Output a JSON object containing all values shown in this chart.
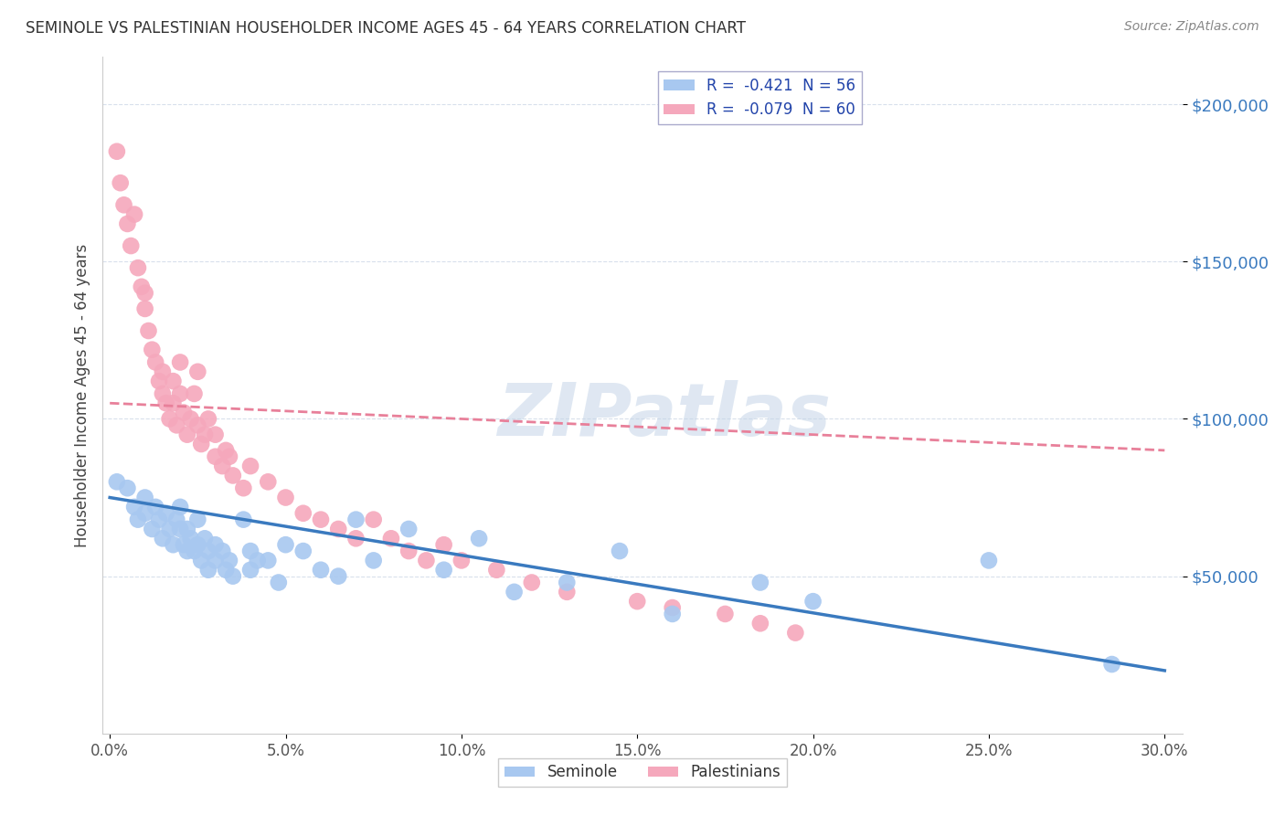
{
  "title": "SEMINOLE VS PALESTINIAN HOUSEHOLDER INCOME AGES 45 - 64 YEARS CORRELATION CHART",
  "source": "Source: ZipAtlas.com",
  "ylabel": "Householder Income Ages 45 - 64 years",
  "xlabel_ticks": [
    "0.0%",
    "5.0%",
    "10.0%",
    "15.0%",
    "20.0%",
    "25.0%",
    "30.0%"
  ],
  "xlabel_vals": [
    0.0,
    0.05,
    0.1,
    0.15,
    0.2,
    0.25,
    0.3
  ],
  "ytick_labels": [
    "$50,000",
    "$100,000",
    "$150,000",
    "$200,000"
  ],
  "ytick_vals": [
    50000,
    100000,
    150000,
    200000
  ],
  "ylim": [
    0,
    215000
  ],
  "xlim": [
    -0.002,
    0.305
  ],
  "seminole_R": "-0.421",
  "seminole_N": "56",
  "palestinian_R": "-0.079",
  "palestinian_N": "60",
  "seminole_color": "#a8c8f0",
  "palestinian_color": "#f5a8bc",
  "seminole_line_color": "#3a7abf",
  "palestinian_line_color": "#e8809a",
  "watermark_zip": "ZIP",
  "watermark_atlas": "atlas",
  "grid_color": "#d8e0ec",
  "seminole_x": [
    0.002,
    0.005,
    0.007,
    0.008,
    0.01,
    0.01,
    0.012,
    0.013,
    0.014,
    0.015,
    0.016,
    0.017,
    0.018,
    0.019,
    0.02,
    0.02,
    0.021,
    0.022,
    0.022,
    0.023,
    0.024,
    0.025,
    0.025,
    0.026,
    0.027,
    0.028,
    0.028,
    0.03,
    0.03,
    0.032,
    0.033,
    0.034,
    0.035,
    0.038,
    0.04,
    0.04,
    0.042,
    0.045,
    0.048,
    0.05,
    0.055,
    0.06,
    0.065,
    0.07,
    0.075,
    0.085,
    0.095,
    0.105,
    0.115,
    0.13,
    0.145,
    0.16,
    0.185,
    0.2,
    0.25,
    0.285
  ],
  "seminole_y": [
    80000,
    78000,
    72000,
    68000,
    75000,
    70000,
    65000,
    72000,
    68000,
    62000,
    70000,
    65000,
    60000,
    68000,
    72000,
    65000,
    60000,
    58000,
    65000,
    62000,
    58000,
    68000,
    60000,
    55000,
    62000,
    58000,
    52000,
    60000,
    55000,
    58000,
    52000,
    55000,
    50000,
    68000,
    58000,
    52000,
    55000,
    55000,
    48000,
    60000,
    58000,
    52000,
    50000,
    68000,
    55000,
    65000,
    52000,
    62000,
    45000,
    48000,
    58000,
    38000,
    48000,
    42000,
    55000,
    22000
  ],
  "palestinian_x": [
    0.002,
    0.003,
    0.004,
    0.005,
    0.006,
    0.007,
    0.008,
    0.009,
    0.01,
    0.01,
    0.011,
    0.012,
    0.013,
    0.014,
    0.015,
    0.015,
    0.016,
    0.017,
    0.018,
    0.018,
    0.019,
    0.02,
    0.02,
    0.021,
    0.022,
    0.023,
    0.024,
    0.025,
    0.025,
    0.026,
    0.027,
    0.028,
    0.03,
    0.03,
    0.032,
    0.033,
    0.034,
    0.035,
    0.038,
    0.04,
    0.045,
    0.05,
    0.055,
    0.06,
    0.065,
    0.07,
    0.075,
    0.08,
    0.085,
    0.09,
    0.095,
    0.1,
    0.11,
    0.12,
    0.13,
    0.15,
    0.16,
    0.175,
    0.185,
    0.195
  ],
  "palestinian_y": [
    185000,
    175000,
    168000,
    162000,
    155000,
    165000,
    148000,
    142000,
    140000,
    135000,
    128000,
    122000,
    118000,
    112000,
    108000,
    115000,
    105000,
    100000,
    112000,
    105000,
    98000,
    108000,
    118000,
    102000,
    95000,
    100000,
    108000,
    115000,
    98000,
    92000,
    95000,
    100000,
    88000,
    95000,
    85000,
    90000,
    88000,
    82000,
    78000,
    85000,
    80000,
    75000,
    70000,
    68000,
    65000,
    62000,
    68000,
    62000,
    58000,
    55000,
    60000,
    55000,
    52000,
    48000,
    45000,
    42000,
    40000,
    38000,
    35000,
    32000
  ]
}
